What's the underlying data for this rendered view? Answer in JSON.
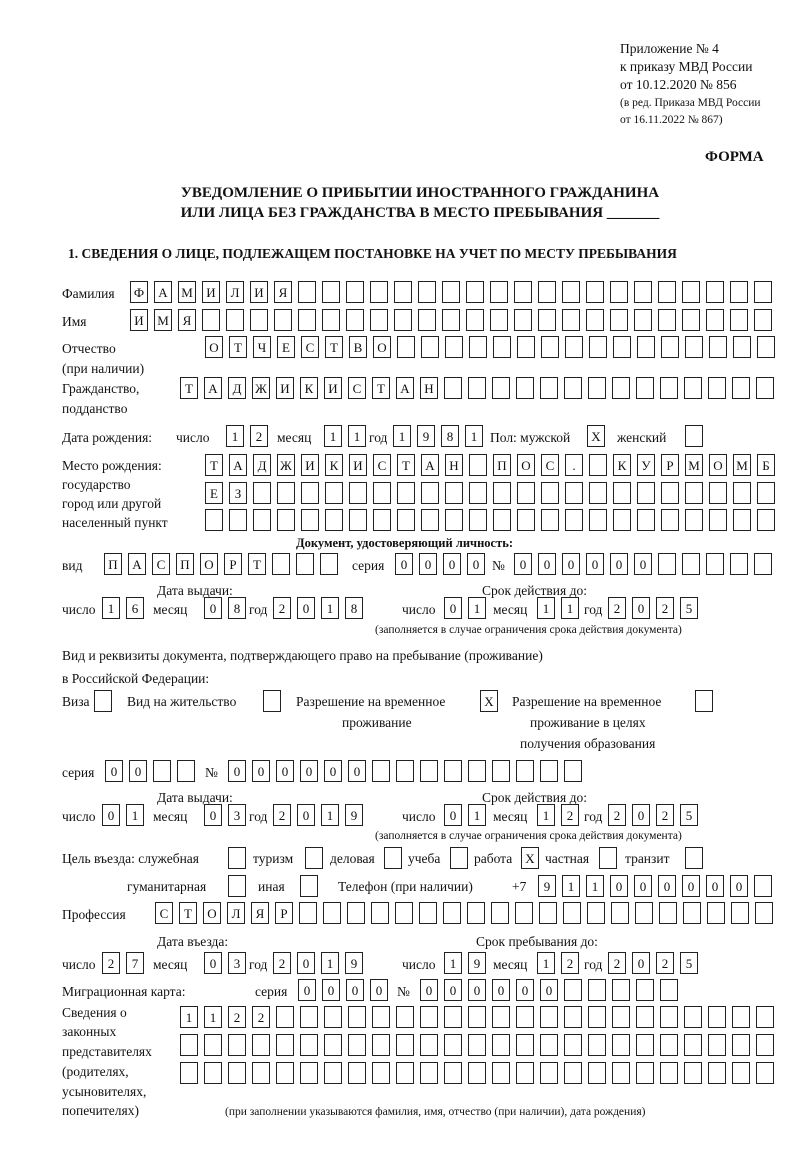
{
  "header": {
    "annex": "Приложение № 4",
    "order": "к приказу МВД России",
    "order_date": "от 10.12.2020 № 856",
    "edition_1": "(в ред. Приказа МВД России",
    "edition_2": "от 16.11.2022 № 867)",
    "form_label": "ФОРМА"
  },
  "title": {
    "line1": "УВЕДОМЛЕНИЕ О ПРИБЫТИИ ИНОСТРАННОГО ГРАЖДАНИНА",
    "line2": "ИЛИ ЛИЦА БЕЗ ГРАЖДАНСТВА В МЕСТО ПРЕБЫВАНИЯ",
    "blank": "_______"
  },
  "section1": {
    "heading": "1. СВЕДЕНИЯ О ЛИЦЕ, ПОДЛЕЖАЩЕМ ПОСТАНОВКЕ НА УЧЕТ ПО МЕСТУ ПРЕБЫВАНИЯ",
    "surname": {
      "label": "Фамилия",
      "chars": [
        "Ф",
        "А",
        "М",
        "И",
        "Л",
        "И",
        "Я"
      ]
    },
    "name": {
      "label": "Имя",
      "chars": [
        "И",
        "М",
        "Я"
      ]
    },
    "patronymic": {
      "label": "Отчество",
      "label2": "(при наличии)",
      "chars": [
        "О",
        "Т",
        "Ч",
        "Е",
        "С",
        "Т",
        "В",
        "О"
      ]
    },
    "citizenship": {
      "label": "Гражданство,",
      "label2": "подданство",
      "chars": [
        "Т",
        "А",
        "Д",
        "Ж",
        "И",
        "К",
        "И",
        "С",
        "Т",
        "А",
        "Н"
      ]
    },
    "birth_date": {
      "label": "Дата рождения:",
      "day_label": "число",
      "month_label": "месяц",
      "year_label": "год",
      "day": [
        "1",
        "2"
      ],
      "month": [
        "1",
        "1"
      ],
      "year": [
        "1",
        "9",
        "8",
        "1"
      ]
    },
    "sex": {
      "label": "Пол: мужской",
      "male": "X",
      "female_label": "женский",
      "female": ""
    },
    "birth_place": {
      "label1": "Место рождения:",
      "label2": "государство",
      "label3": "город или другой",
      "label4": "населенный пункт",
      "row1": [
        "Т",
        "А",
        "Д",
        "Ж",
        "И",
        "К",
        "И",
        "С",
        "Т",
        "А",
        "Н",
        "",
        "П",
        "О",
        "С",
        ".",
        "",
        "К",
        "У",
        "Р",
        "М",
        "О",
        "М",
        "Б"
      ],
      "row2": [
        "Е",
        "З"
      ],
      "row3": []
    },
    "id_document": {
      "heading": "Документ, удостоверяющий личность:",
      "type_label": "вид",
      "type": [
        "П",
        "А",
        "С",
        "П",
        "О",
        "Р",
        "Т"
      ],
      "series_label": "серия",
      "series": [
        "0",
        "0",
        "0",
        "0"
      ],
      "number_label": "№",
      "number": [
        "0",
        "0",
        "0",
        "0",
        "0",
        "0"
      ],
      "issue_label": "Дата выдачи:",
      "valid_label": "Срок действия до:",
      "day_label": "число",
      "month_label": "месяц",
      "year_label": "год",
      "issue_day": [
        "1",
        "6"
      ],
      "issue_month": [
        "0",
        "8"
      ],
      "issue_year": [
        "2",
        "0",
        "1",
        "8"
      ],
      "valid_day": [
        "0",
        "1"
      ],
      "valid_month": [
        "1",
        "1"
      ],
      "valid_year": [
        "2",
        "0",
        "2",
        "5"
      ],
      "note": "(заполняется в случае ограничения срока действия документа)"
    },
    "stay_document": {
      "intro1": "Вид и реквизиты документа, подтверждающего право на пребывание (проживание)",
      "intro2": "в Российской Федерации:",
      "visa_label": "Виза",
      "visa": "",
      "residence_label": "Вид на жительство",
      "residence": "",
      "temp_label1": "Разрешение на временное",
      "temp_label2": "проживание",
      "temp": "X",
      "edu_label1": "Разрешение на временное",
      "edu_label2": "проживание в целях",
      "edu_label3": "получения образования",
      "edu": "",
      "series_label": "серия",
      "series": [
        "0",
        "0"
      ],
      "number_label": "№",
      "number": [
        "0",
        "0",
        "0",
        "0",
        "0",
        "0"
      ],
      "issue_label": "Дата выдачи:",
      "valid_label": "Срок действия до:",
      "day_label": "число",
      "month_label": "месяц",
      "year_label": "год",
      "issue_day": [
        "0",
        "1"
      ],
      "issue_month": [
        "0",
        "3"
      ],
      "issue_year": [
        "2",
        "0",
        "1",
        "9"
      ],
      "valid_day": [
        "0",
        "1"
      ],
      "valid_month": [
        "1",
        "2"
      ],
      "valid_year": [
        "2",
        "0",
        "2",
        "5"
      ],
      "note": "(заполняется в случае ограничения срока действия документа)"
    },
    "purpose": {
      "label": "Цель въезда: служебная",
      "official": "",
      "tourism_label": "туризм",
      "tourism": "",
      "business_label": "деловая",
      "business": "",
      "study_label": "учеба",
      "study": "",
      "work_label": "работа",
      "work": "X",
      "private_label": "частная",
      "private": "",
      "transit_label": "транзит",
      "transit": "",
      "humanitarian_label": "гуманитарная",
      "humanitarian": "",
      "other_label": "иная",
      "other": ""
    },
    "phone": {
      "label": "Телефон (при наличии)",
      "prefix": "+7",
      "digits": [
        "9",
        "1",
        "1",
        "0",
        "0",
        "0",
        "0",
        "0",
        "0"
      ]
    },
    "profession": {
      "label": "Профессия",
      "chars": [
        "С",
        "Т",
        "О",
        "Л",
        "Я",
        "Р"
      ]
    },
    "entry": {
      "entry_label": "Дата въезда:",
      "stay_label": "Срок пребывания до:",
      "day_label": "число",
      "month_label": "месяц",
      "year_label": "год",
      "entry_day": [
        "2",
        "7"
      ],
      "entry_month": [
        "0",
        "3"
      ],
      "entry_year": [
        "2",
        "0",
        "1",
        "9"
      ],
      "stay_day": [
        "1",
        "9"
      ],
      "stay_month": [
        "1",
        "2"
      ],
      "stay_year": [
        "2",
        "0",
        "2",
        "5"
      ]
    },
    "migration_card": {
      "label": "Миграционная карта:",
      "series_label": "серия",
      "series": [
        "0",
        "0",
        "0",
        "0"
      ],
      "number_label": "№",
      "number": [
        "0",
        "0",
        "0",
        "0",
        "0",
        "0"
      ]
    },
    "representatives": {
      "label1": "Сведения о",
      "label2": "законных",
      "label3": "представителях",
      "label4": "(родителях,",
      "label5": "усыновителях,",
      "label6": "попечителях)",
      "row1": [
        "1",
        "1",
        "2",
        "2"
      ],
      "row2": [],
      "row3": [],
      "note": "(при заполнении указываются фамилия, имя, отчество (при наличии), дата рождения)"
    }
  }
}
